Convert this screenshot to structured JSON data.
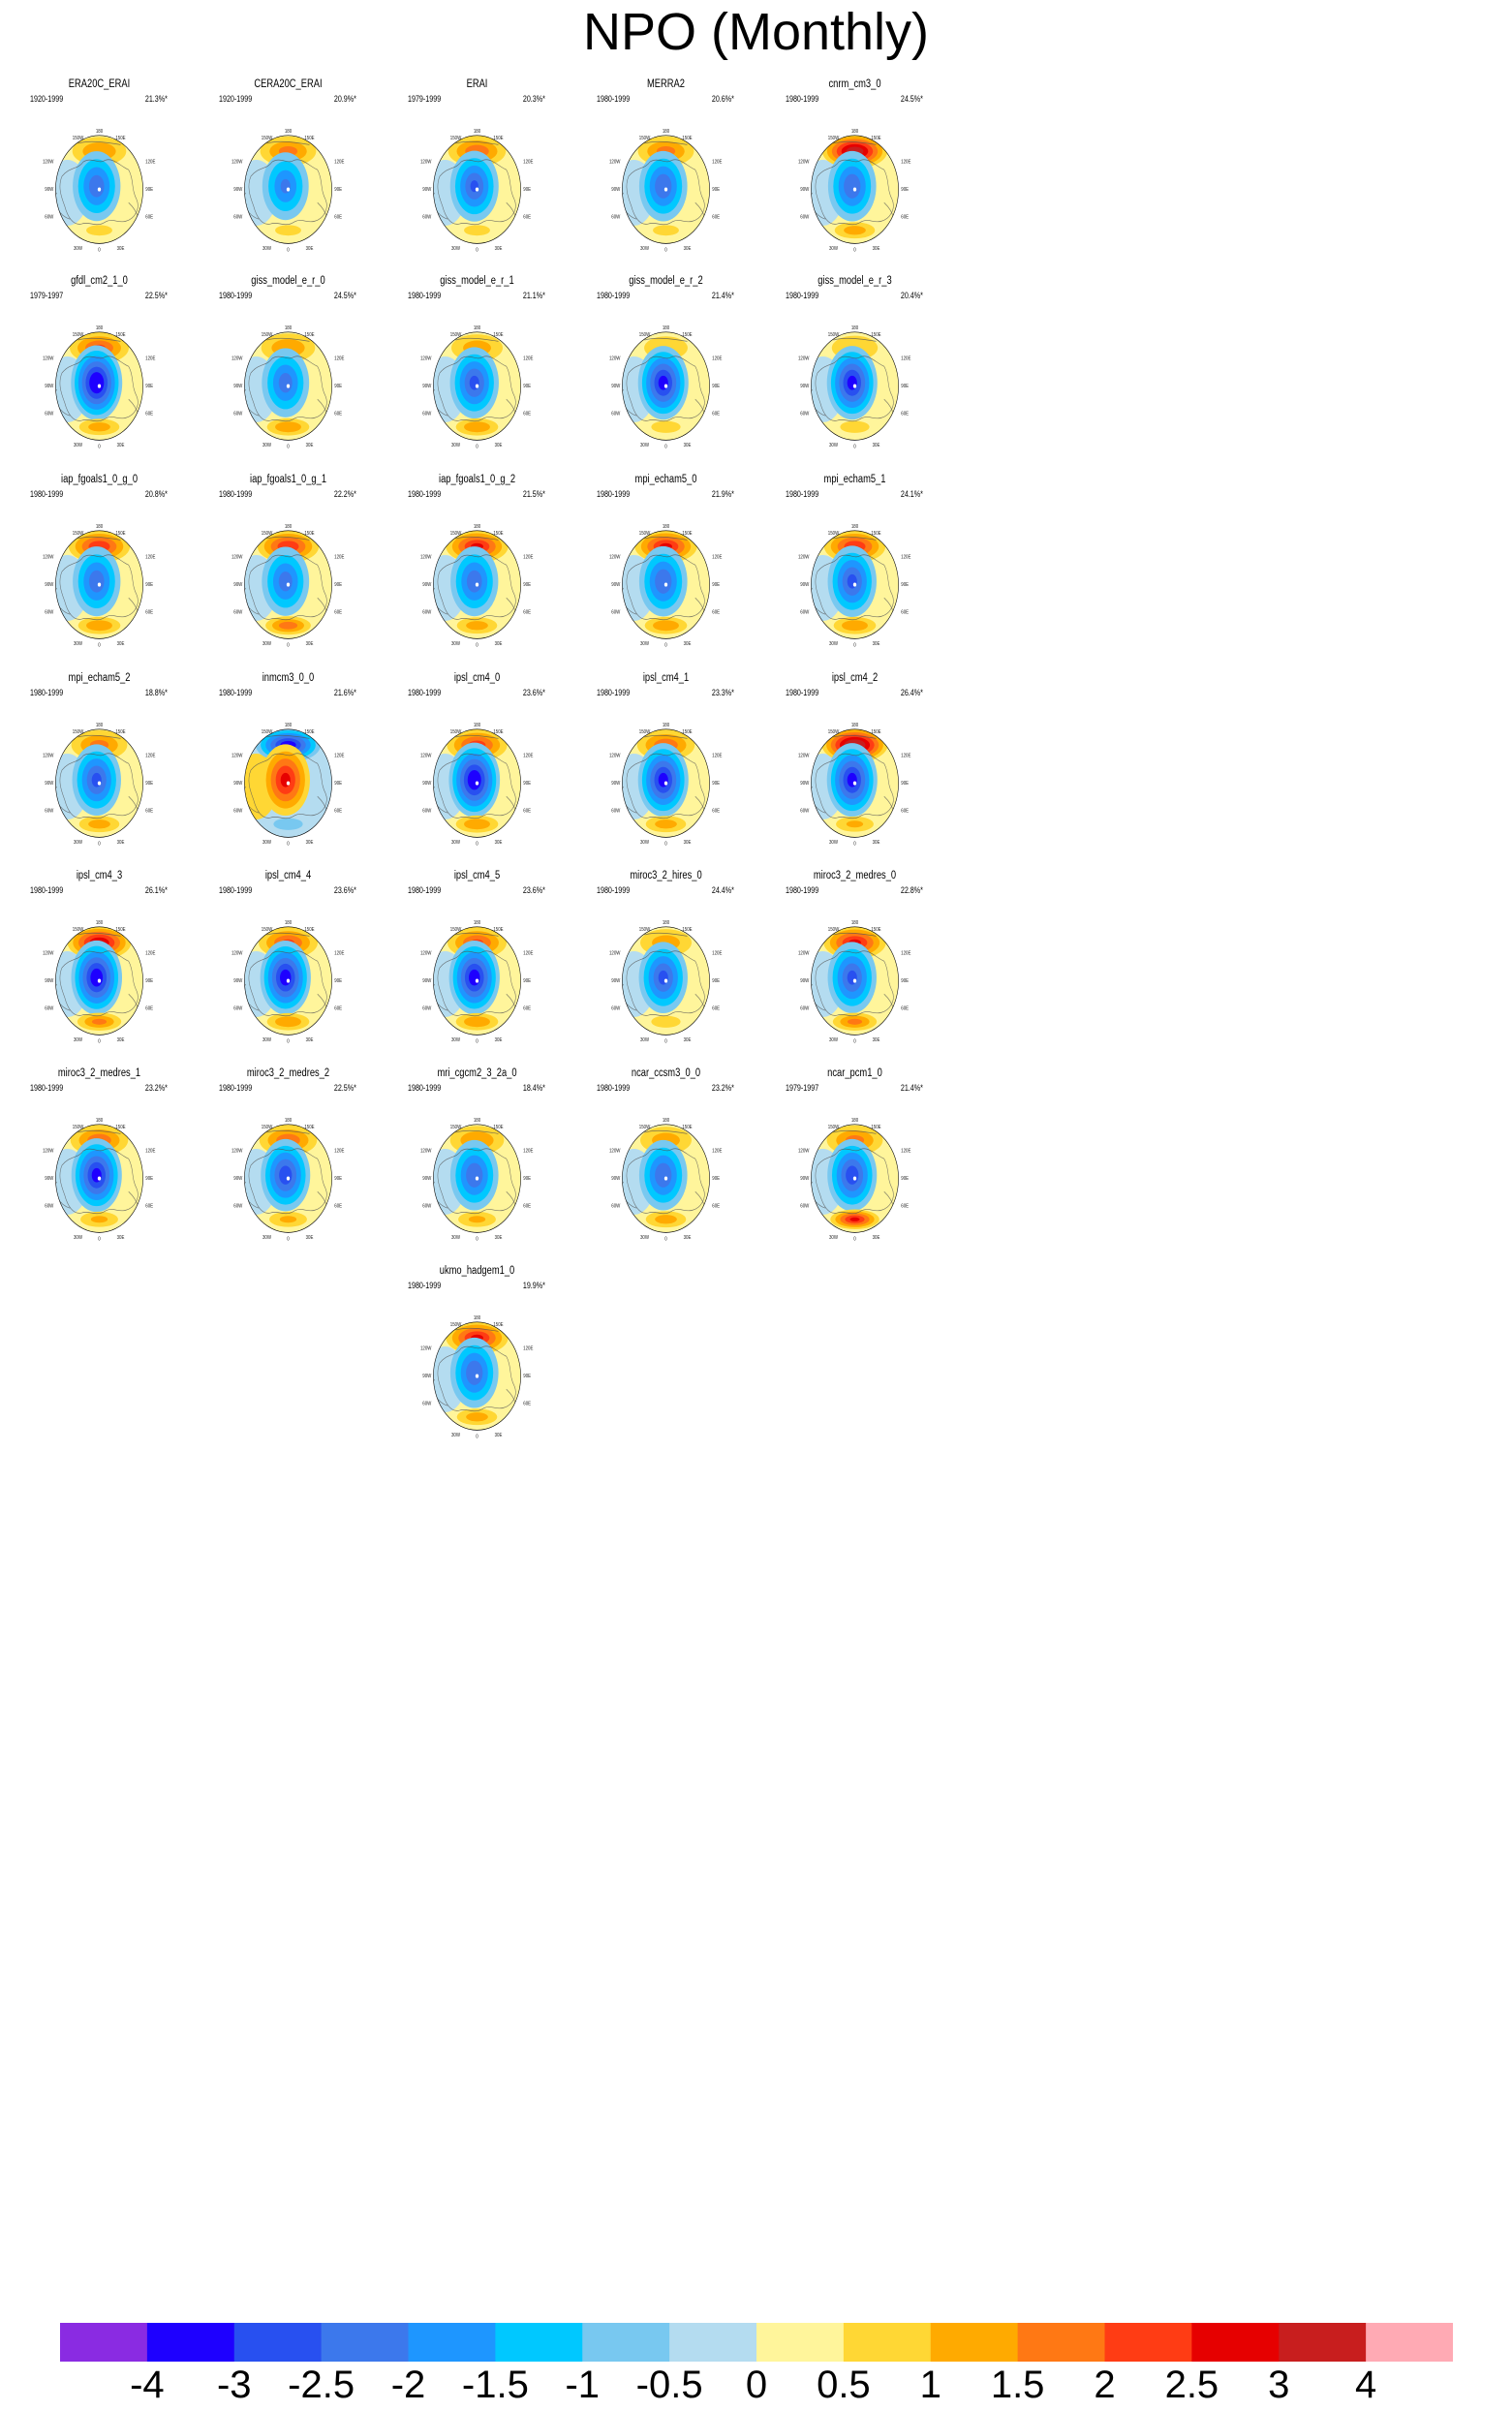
{
  "title": "NPO (Monthly)",
  "lon_labels": [
    "180",
    "150W",
    "150E",
    "120W",
    "120E",
    "90W",
    "90E",
    "60W",
    "60E",
    "30W",
    "30E",
    "0"
  ],
  "colorbar": {
    "colors": [
      "#8a2be2",
      "#1e00ff",
      "#2850f0",
      "#3c78ec",
      "#1e96ff",
      "#00c8ff",
      "#78c8f0",
      "#b4dcf0",
      "#fff59b",
      "#ffd734",
      "#ffaa00",
      "#ff7814",
      "#ff3c14",
      "#e60000",
      "#c81e1e",
      "#ffaab4"
    ],
    "labels": [
      "-4",
      "-3",
      "-2.5",
      "-2",
      "-1.5",
      "-1",
      "-0.5",
      "0",
      "0.5",
      "1",
      "1.5",
      "2",
      "2.5",
      "3",
      "4"
    ]
  },
  "panels": [
    {
      "title": "ERA20C_ERAI",
      "period": "1920-1999",
      "pct": "21.3%*",
      "north": 1.4,
      "center": -2.3,
      "south": 0.5
    },
    {
      "title": "CERA20C_ERAI",
      "period": "1920-1999",
      "pct": "20.9%*",
      "north": 1.6,
      "center": -2.0,
      "south": 0.5
    },
    {
      "title": "ERAI",
      "period": "1979-1999",
      "pct": "20.3%*",
      "north": 1.8,
      "center": -2.5,
      "south": 0.5
    },
    {
      "title": "MERRA2",
      "period": "1980-1999",
      "pct": "20.6%*",
      "north": 1.6,
      "center": -2.4,
      "south": 0.5
    },
    {
      "title": "cnrm_cm3_0",
      "period": "1980-1999",
      "pct": "24.5%*",
      "north": 3.5,
      "center": -2.4,
      "south": 1.2
    },
    {
      "title": "gfdl_cm2_1_0",
      "period": "1979-1997",
      "pct": "22.5%*",
      "north": 2.0,
      "center": -3.6,
      "south": 1.2
    },
    {
      "title": "giss_model_e_r_0",
      "period": "1980-1999",
      "pct": "24.5%*",
      "north": 1.4,
      "center": -2.2,
      "south": 1.4
    },
    {
      "title": "giss_model_e_r_1",
      "period": "1980-1999",
      "pct": "21.1%*",
      "north": 1.2,
      "center": -2.6,
      "south": 1.4
    },
    {
      "title": "giss_model_e_r_2",
      "period": "1980-1999",
      "pct": "21.4%*",
      "north": 0.8,
      "center": -3.2,
      "south": 0.6
    },
    {
      "title": "giss_model_e_r_3",
      "period": "1980-1999",
      "pct": "20.4%*",
      "north": 0.9,
      "center": -3.2,
      "south": 0.6
    },
    {
      "title": "iap_fgoals1_0_g_0",
      "period": "1980-1999",
      "pct": "20.8%*",
      "north": 2.4,
      "center": -2.3,
      "south": 1.4
    },
    {
      "title": "iap_fgoals1_0_g_1",
      "period": "1980-1999",
      "pct": "22.2%*",
      "north": 2.4,
      "center": -2.2,
      "south": 1.8
    },
    {
      "title": "iap_fgoals1_0_g_2",
      "period": "1980-1999",
      "pct": "21.5%*",
      "north": 2.6,
      "center": -2.3,
      "south": 1.2
    },
    {
      "title": "mpi_echam5_0",
      "period": "1980-1999",
      "pct": "21.9%*",
      "north": 2.6,
      "center": -2.4,
      "south": 1.4
    },
    {
      "title": "mpi_echam5_1",
      "period": "1980-1999",
      "pct": "24.1%*",
      "north": 2.4,
      "center": -2.6,
      "south": 1.4
    },
    {
      "title": "mpi_echam5_2",
      "period": "1980-1999",
      "pct": "18.8%*",
      "north": 1.6,
      "center": -2.6,
      "south": 1.2
    },
    {
      "title": "inmcm3_0_0",
      "period": "1980-1999",
      "pct": "21.6%*",
      "north": -3.4,
      "center": 2.6,
      "south": -0.6
    },
    {
      "title": "ipsl_cm4_0",
      "period": "1980-1999",
      "pct": "23.6%*",
      "north": 2.2,
      "center": -3.5,
      "south": 1.4
    },
    {
      "title": "ipsl_cm4_1",
      "period": "1980-1999",
      "pct": "23.3%*",
      "north": 1.8,
      "center": -3.2,
      "south": 1.2
    },
    {
      "title": "ipsl_cm4_2",
      "period": "1980-1999",
      "pct": "26.4%*",
      "north": 3.8,
      "center": -3.2,
      "south": 1.0
    },
    {
      "title": "ipsl_cm4_3",
      "period": "1980-1999",
      "pct": "26.1%*",
      "north": 3.0,
      "center": -3.4,
      "south": 1.6
    },
    {
      "title": "ipsl_cm4_4",
      "period": "1980-1999",
      "pct": "23.6%*",
      "north": 2.0,
      "center": -3.3,
      "south": 1.4
    },
    {
      "title": "ipsl_cm4_5",
      "period": "1980-1999",
      "pct": "23.6%*",
      "north": 2.0,
      "center": -3.3,
      "south": 1.4
    },
    {
      "title": "miroc3_2_hires_0",
      "period": "1980-1999",
      "pct": "24.4%*",
      "north": 1.2,
      "center": -2.6,
      "south": 0.6
    },
    {
      "title": "miroc3_2_medres_0",
      "period": "1980-1999",
      "pct": "22.8%*",
      "north": 2.6,
      "center": -2.6,
      "south": 1.6
    },
    {
      "title": "miroc3_2_medres_1",
      "period": "1980-1999",
      "pct": "23.2%*",
      "north": 1.8,
      "center": -3.2,
      "south": 1.0
    },
    {
      "title": "miroc3_2_medres_2",
      "period": "1980-1999",
      "pct": "22.5%*",
      "north": 1.8,
      "center": -2.8,
      "south": 1.0
    },
    {
      "title": "mri_cgcm2_3_2a_0",
      "period": "1980-1999",
      "pct": "18.4%*",
      "north": 1.4,
      "center": -2.4,
      "south": 1.0
    },
    {
      "title": "ncar_ccsm3_0_0",
      "period": "1980-1999",
      "pct": "23.2%*",
      "north": 1.2,
      "center": -2.4,
      "south": 1.2
    },
    {
      "title": "ncar_pcm1_0",
      "period": "1979-1997",
      "pct": "21.4%*",
      "north": 1.6,
      "center": -2.8,
      "south": 2.6
    },
    {
      "title": "ukmo_hadgem1_0",
      "period": "1980-1999",
      "pct": "19.9%*",
      "north": 2.6,
      "center": -2.4,
      "south": 1.2
    }
  ]
}
